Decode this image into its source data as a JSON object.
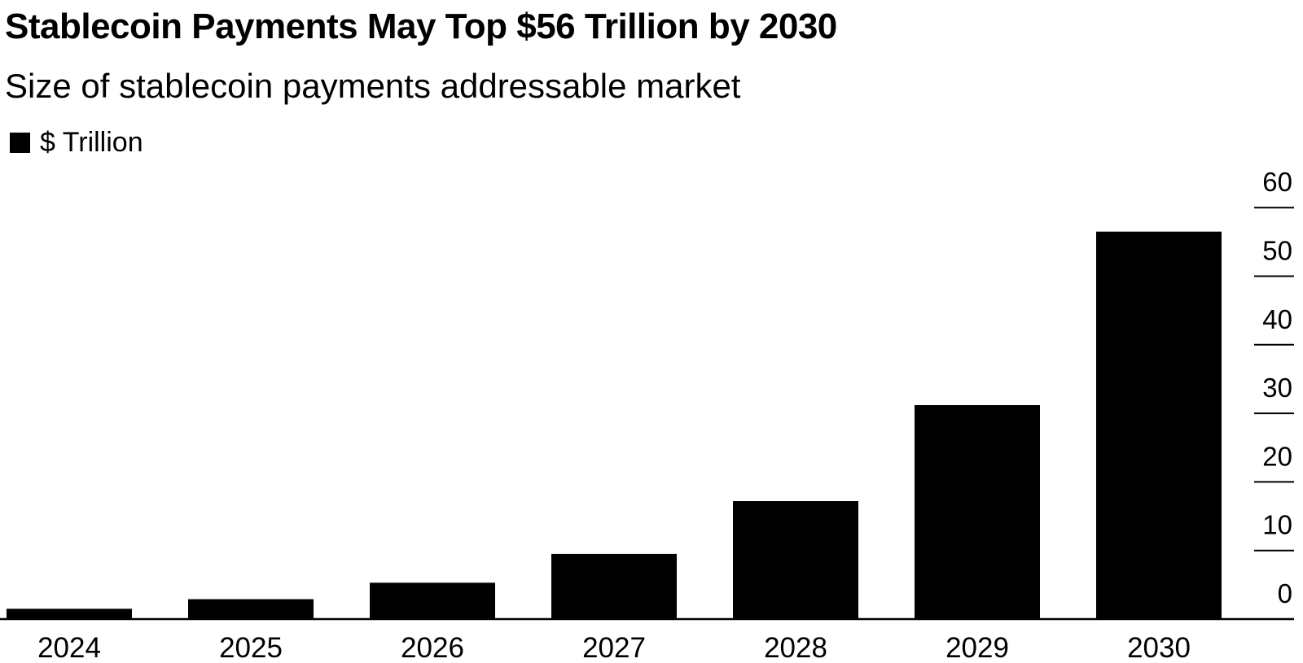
{
  "chart_data": {
    "type": "bar",
    "title": "Stablecoin Payments May Top $56 Trillion by 2030",
    "subtitle": "Size of stablecoin payments addressable market",
    "legend": [
      {
        "name": "$ Trillion",
        "color": "#000000"
      }
    ],
    "legend_position": "top-left",
    "categories": [
      "2024",
      "2025",
      "2026",
      "2027",
      "2028",
      "2029",
      "2030"
    ],
    "series": [
      {
        "name": "$ Trillion",
        "values": [
          1.5,
          2.9,
          5.3,
          9.5,
          17.2,
          31.2,
          56.5
        ]
      }
    ],
    "ylim": [
      0,
      60
    ],
    "yticks": [
      "0",
      "10",
      "20",
      "30",
      "40",
      "50",
      "60"
    ],
    "y_axis_side": "right",
    "grid": false,
    "colors": {
      "bar": "#000000",
      "axis": "#000000"
    }
  }
}
